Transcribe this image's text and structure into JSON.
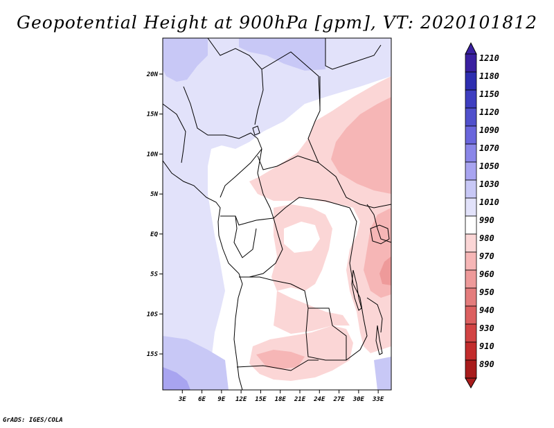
{
  "title": "Geopotential Height at 900hPa [gpm], VT: 2020101812",
  "footer": "GrADS: IGES/COLA",
  "lat_labels": [
    "20N",
    "15N",
    "10N",
    "5N",
    "EQ",
    "5S",
    "10S",
    "15S"
  ],
  "lat_values": [
    20,
    15,
    10,
    5,
    0,
    -5,
    -10,
    -15
  ],
  "lon_labels": [
    "3E",
    "6E",
    "9E",
    "12E",
    "15E",
    "18E",
    "21E",
    "24E",
    "27E",
    "30E",
    "33E"
  ],
  "lon_values": [
    3,
    6,
    9,
    12,
    15,
    18,
    21,
    24,
    27,
    30,
    33
  ],
  "extent": {
    "lon_min": 0,
    "lon_max": 35,
    "lat_min": -19.5,
    "lat_max": 24.5
  },
  "colorbar": {
    "labels": [
      "1210",
      "1180",
      "1150",
      "1120",
      "1090",
      "1070",
      "1050",
      "1030",
      "1010",
      "990",
      "980",
      "970",
      "960",
      "950",
      "940",
      "930",
      "910",
      "890"
    ],
    "colors": [
      "#3a20a0",
      "#2e2eb0",
      "#3e3ec0",
      "#5050cc",
      "#6a66dc",
      "#8a86e8",
      "#a8a4f0",
      "#c8c8f6",
      "#e2e2fa",
      "#ffffff",
      "#fbd6d6",
      "#f6b6b6",
      "#ee9a9a",
      "#e47c7c",
      "#dc6060",
      "#d24444",
      "#c22c2c",
      "#a81c1c"
    ]
  },
  "chart_data": {
    "type": "heatmap",
    "title": "Geopotential Height at 900hPa [gpm], VT: 2020101812",
    "variable": "Geopotential Height",
    "level": "900hPa",
    "units": "gpm",
    "valid_time": "2020101812",
    "x_range_deg_E": [
      0,
      35
    ],
    "y_range_deg_N": [
      -19.5,
      24.5
    ],
    "contour_levels": [
      890,
      910,
      930,
      940,
      950,
      960,
      970,
      980,
      990,
      1010,
      1030,
      1050,
      1070,
      1090,
      1120,
      1150,
      1180,
      1210
    ]
  }
}
